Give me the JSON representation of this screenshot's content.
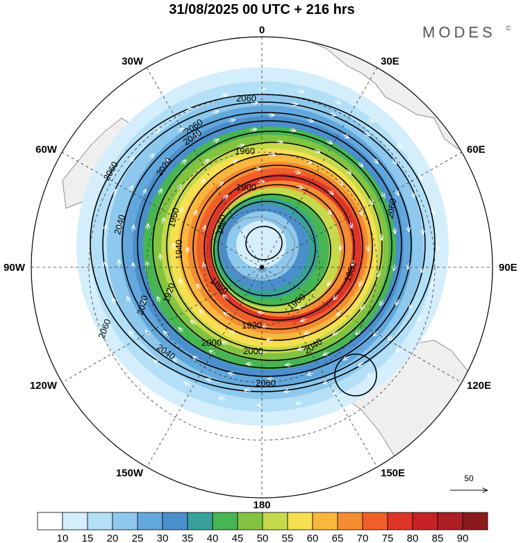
{
  "title": "31/08/2025  00 UTC  + 216 hrs",
  "brand": "MODES",
  "brand_mark": "©",
  "longitude_labels": {
    "n0": "0",
    "n30e": "30E",
    "n60e": "60E",
    "n90e": "90E",
    "n120e": "120E",
    "n150e": "150E",
    "n180": "180",
    "n150w": "150W",
    "n120w": "120W",
    "n90w": "90W",
    "n60w": "60W",
    "n30w": "30W"
  },
  "contour_labels": [
    "2060",
    "2040",
    "2020",
    "1960",
    "1950",
    "1900",
    "1860",
    "1940",
    "1980",
    "1920",
    "2000",
    "2060",
    "2040",
    "2020",
    "2060",
    "2040",
    "2060",
    "1860",
    "1900",
    "1920",
    "2000",
    "2040",
    "2060",
    "2060"
  ],
  "vector_reference": {
    "value": "50"
  },
  "colorbar": {
    "ticks": [
      "10",
      "15",
      "20",
      "25",
      "30",
      "35",
      "40",
      "45",
      "50",
      "55",
      "60",
      "65",
      "70",
      "75",
      "80",
      "85",
      "90"
    ],
    "colors": [
      "#ffffff",
      "#d4eefb",
      "#b4e0f7",
      "#8ec8ed",
      "#63a8dc",
      "#4b8fcc",
      "#3aa19a",
      "#48b553",
      "#82c342",
      "#c5d94c",
      "#f6e051",
      "#f8b73d",
      "#f48c31",
      "#ee5f2a",
      "#dd3528",
      "#c52327",
      "#ad1f25",
      "#8c1a1c"
    ]
  },
  "colors": {
    "land": "#efefef",
    "coast": "#777777",
    "contour": "#000000",
    "grid": "#333333"
  }
}
